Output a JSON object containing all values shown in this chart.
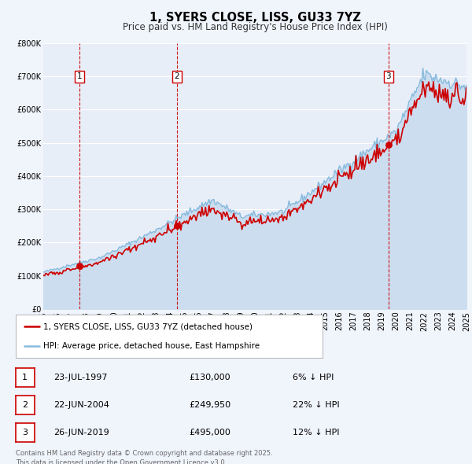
{
  "title": "1, SYERS CLOSE, LISS, GU33 7YZ",
  "subtitle": "Price paid vs. HM Land Registry's House Price Index (HPI)",
  "ylim": [
    0,
    800000
  ],
  "yticks": [
    0,
    100000,
    200000,
    300000,
    400000,
    500000,
    600000,
    700000,
    800000
  ],
  "ytick_labels": [
    "£0",
    "£100K",
    "£200K",
    "£300K",
    "£400K",
    "£500K",
    "£600K",
    "£700K",
    "£800K"
  ],
  "background_color": "#f0f4fb",
  "plot_bg_color": "#e8eef8",
  "grid_color": "#ffffff",
  "sale_color": "#cc0000",
  "hpi_color": "#88bbdd",
  "hpi_fill_color": "#ccddf0",
  "sale_dates": [
    1997.56,
    2004.47,
    2019.48
  ],
  "sale_prices": [
    130000,
    249950,
    495000
  ],
  "sale_labels": [
    "1",
    "2",
    "3"
  ],
  "table_rows": [
    [
      "1",
      "23-JUL-1997",
      "£130,000",
      "6% ↓ HPI"
    ],
    [
      "2",
      "22-JUN-2004",
      "£249,950",
      "22% ↓ HPI"
    ],
    [
      "3",
      "26-JUN-2019",
      "£495,000",
      "12% ↓ HPI"
    ]
  ],
  "legend_entries": [
    "1, SYERS CLOSE, LISS, GU33 7YZ (detached house)",
    "HPI: Average price, detached house, East Hampshire"
  ],
  "footer_text": "Contains HM Land Registry data © Crown copyright and database right 2025.\nThis data is licensed under the Open Government Licence v3.0.",
  "title_fontsize": 10.5,
  "subtitle_fontsize": 8.5,
  "tick_fontsize": 7,
  "legend_fontsize": 7.5,
  "table_fontsize": 8,
  "footer_fontsize": 6
}
